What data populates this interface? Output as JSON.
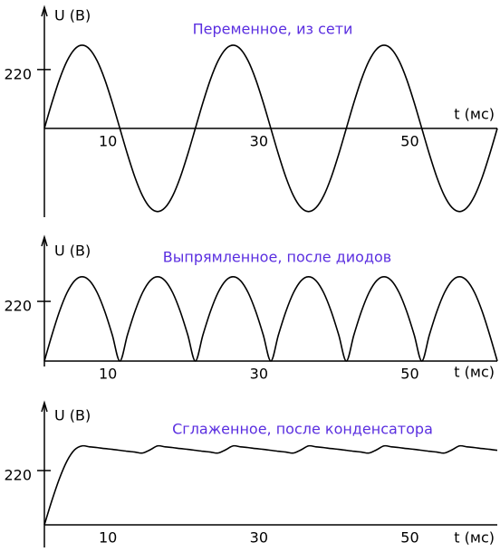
{
  "chart_data": [
    {
      "type": "line",
      "title": "Переменное, из сети",
      "ylabel": "U (В)",
      "xlabel": "t (мс)",
      "color": "#000000",
      "title_color": "#5a2ee0",
      "x": [
        0,
        1,
        2,
        3,
        4,
        5,
        6,
        7,
        8,
        9,
        10,
        11,
        12,
        13,
        14,
        15,
        16,
        17,
        18,
        19,
        20,
        21,
        22,
        23,
        24,
        25,
        26,
        27,
        28,
        29,
        30,
        31,
        32,
        33,
        34,
        35,
        36,
        37,
        38,
        39,
        40,
        41,
        42,
        43,
        44,
        45,
        46,
        47,
        48,
        49,
        50,
        51,
        52,
        53,
        54,
        55,
        56,
        57,
        58,
        59,
        60
      ],
      "values": [
        0,
        96,
        183,
        252,
        296,
        311,
        296,
        252,
        183,
        96,
        0,
        -96,
        -183,
        -252,
        -296,
        -311,
        -296,
        -252,
        -183,
        -96,
        0,
        96,
        183,
        252,
        296,
        311,
        296,
        252,
        183,
        96,
        0,
        -96,
        -183,
        -252,
        -296,
        -311,
        -296,
        -252,
        -183,
        -96,
        0,
        96,
        183,
        252,
        296,
        311,
        296,
        252,
        183,
        96,
        0,
        -96,
        -183,
        -252,
        -296,
        -311,
        -296,
        -252,
        -183,
        -96,
        0
      ],
      "xlim": [
        0,
        60
      ],
      "xticks": [
        10,
        30,
        50
      ],
      "ylim": [
        -332,
        453
      ],
      "yticks": [
        220
      ]
    },
    {
      "type": "line",
      "title": "Выпрямленное, после диодов",
      "ylabel": "U (В)",
      "xlabel": "t (мс)",
      "color": "#000000",
      "title_color": "#5a2ee0",
      "x": [
        0,
        1,
        2,
        3,
        4,
        5,
        6,
        7,
        8,
        9,
        10,
        11,
        12,
        13,
        14,
        15,
        16,
        17,
        18,
        19,
        20,
        21,
        22,
        23,
        24,
        25,
        26,
        27,
        28,
        29,
        30,
        31,
        32,
        33,
        34,
        35,
        36,
        37,
        38,
        39,
        40,
        41,
        42,
        43,
        44,
        45,
        46,
        47,
        48,
        49,
        50,
        51,
        52,
        53,
        54,
        55,
        56,
        57,
        58,
        59,
        60
      ],
      "values": [
        0,
        96,
        183,
        252,
        296,
        311,
        296,
        252,
        183,
        96,
        0,
        96,
        183,
        252,
        296,
        311,
        296,
        252,
        183,
        96,
        0,
        96,
        183,
        252,
        296,
        311,
        296,
        252,
        183,
        96,
        0,
        96,
        183,
        252,
        296,
        311,
        296,
        252,
        183,
        96,
        0,
        96,
        183,
        252,
        296,
        311,
        296,
        252,
        183,
        96,
        0,
        96,
        183,
        252,
        296,
        311,
        296,
        252,
        183,
        96,
        0
      ],
      "xlim": [
        0,
        60
      ],
      "xticks": [
        10,
        30,
        50
      ],
      "ylim": [
        0,
        457
      ],
      "yticks": [
        220
      ]
    },
    {
      "type": "line",
      "title": "Сглаженное, после конденсатора",
      "ylabel": "U (В)",
      "xlabel": "t (мс)",
      "color": "#000000",
      "title_color": "#5a2ee0",
      "x": [
        0,
        1,
        2,
        3,
        4,
        5,
        6,
        7,
        8,
        9,
        10,
        11,
        12,
        13,
        14,
        15,
        16,
        17,
        18,
        19,
        20,
        21,
        22,
        23,
        24,
        25,
        26,
        27,
        28,
        29,
        30,
        31,
        32,
        33,
        34,
        35,
        36,
        37,
        38,
        39,
        40,
        41,
        42,
        43,
        44,
        45,
        46,
        47,
        48,
        49,
        50,
        51,
        52,
        53,
        54,
        55,
        56,
        57,
        58,
        59,
        60
      ],
      "values": [
        0,
        99,
        188,
        259,
        304,
        320,
        316,
        313,
        309,
        306,
        302,
        298,
        295,
        291,
        304,
        320,
        316,
        313,
        309,
        306,
        302,
        298,
        295,
        291,
        304,
        320,
        316,
        313,
        309,
        306,
        302,
        298,
        295,
        291,
        304,
        320,
        316,
        313,
        309,
        306,
        302,
        298,
        295,
        291,
        304,
        320,
        316,
        313,
        309,
        306,
        302,
        298,
        295,
        291,
        304,
        320,
        316,
        313,
        309,
        306,
        302
      ],
      "xlim": [
        0,
        60
      ],
      "xticks": [
        10,
        30,
        50
      ],
      "ylim": [
        0,
        495
      ],
      "yticks": [
        220
      ]
    }
  ]
}
